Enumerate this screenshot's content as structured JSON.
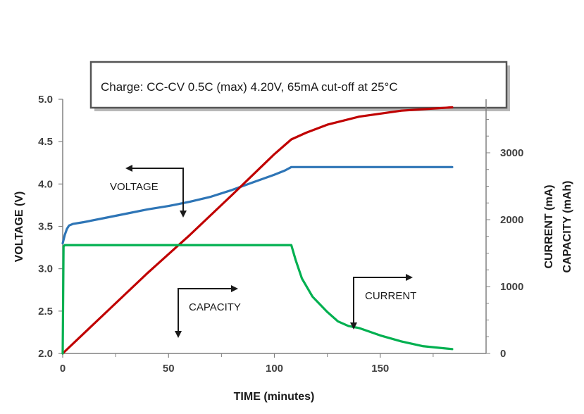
{
  "chart_data": {
    "type": "line",
    "title": "Charge:   CC-CV 0.5C (max) 4.20V, 65mA cut-off at 25°C",
    "xlabel": "TIME (minutes)",
    "ylabel_left": "VOLTAGE (V)",
    "ylabel_right_1": "CURRENT (mA)",
    "ylabel_right_2": "CAPACITY (mAh)",
    "xlim": [
      0,
      200
    ],
    "ylim_left": [
      2.0,
      5.0
    ],
    "ylim_right": [
      0,
      3800
    ],
    "x_ticks": [
      "0",
      "50",
      "100",
      "150"
    ],
    "x_tick_values": [
      0,
      50,
      100,
      150
    ],
    "y_left_ticks": [
      "2.0",
      "2.5",
      "3.0",
      "3.5",
      "4.0",
      "4.5",
      "5.0"
    ],
    "y_left_tick_values": [
      2.0,
      2.5,
      3.0,
      3.5,
      4.0,
      4.5,
      5.0
    ],
    "y_right_ticks": [
      "0",
      "1000",
      "2000",
      "3000"
    ],
    "y_right_tick_values": [
      0,
      1000,
      2000,
      3000
    ],
    "grid": false,
    "annotations": {
      "voltage": "VOLTAGE",
      "capacity": "CAPACITY",
      "current": "CURRENT"
    },
    "series": [
      {
        "name": "VOLTAGE",
        "axis": "left",
        "color": "#2e75b6",
        "x": [
          0,
          1,
          2,
          3,
          5,
          10,
          20,
          30,
          40,
          50,
          60,
          70,
          80,
          90,
          100,
          105,
          108,
          120,
          150,
          184
        ],
        "y": [
          3.3,
          3.4,
          3.47,
          3.51,
          3.53,
          3.55,
          3.6,
          3.65,
          3.7,
          3.74,
          3.79,
          3.85,
          3.93,
          4.02,
          4.11,
          4.16,
          4.2,
          4.2,
          4.2,
          4.2
        ]
      },
      {
        "name": "CAPACITY",
        "axis": "right",
        "color": "#c00000",
        "x": [
          0,
          20,
          40,
          60,
          80,
          100,
          108,
          115,
          125,
          140,
          160,
          184
        ],
        "y": [
          0,
          600,
          1200,
          1770,
          2370,
          2980,
          3200,
          3300,
          3420,
          3540,
          3630,
          3680
        ]
      },
      {
        "name": "CURRENT",
        "axis": "right",
        "color": "#00b050",
        "x": [
          0,
          0.4,
          1,
          108,
          110,
          113,
          118,
          125,
          130,
          135,
          140,
          150,
          160,
          170,
          184
        ],
        "y": [
          0,
          1600,
          1620,
          1620,
          1400,
          1120,
          850,
          620,
          480,
          410,
          380,
          270,
          180,
          110,
          65
        ]
      }
    ]
  }
}
